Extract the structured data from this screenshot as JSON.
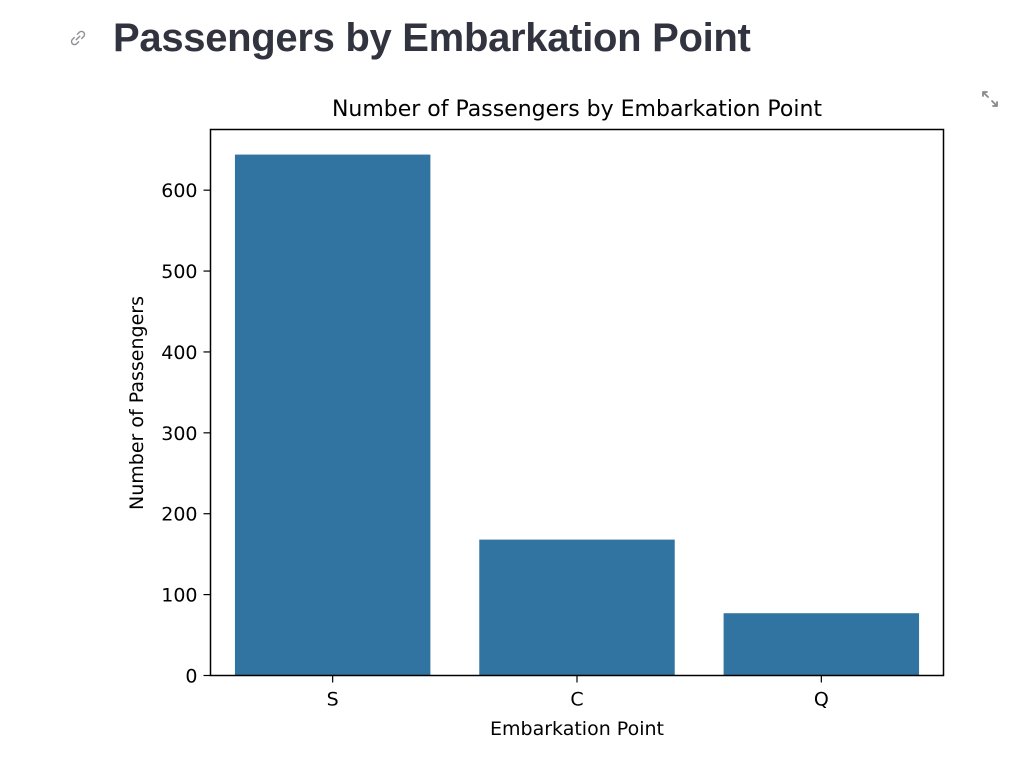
{
  "header": {
    "title": "Passengers by Embarkation Point",
    "link_icon": "link-icon",
    "expand_icon": "fullscreen-expand-icon"
  },
  "chart_data": {
    "type": "bar",
    "title": "Number of Passengers by Embarkation Point",
    "xlabel": "Embarkation Point",
    "ylabel": "Number of Passengers",
    "categories": [
      "S",
      "C",
      "Q"
    ],
    "values": [
      644,
      168,
      77
    ],
    "ylim": [
      0,
      675
    ],
    "yticks": [
      0,
      100,
      200,
      300,
      400,
      500,
      600
    ],
    "bar_color": "#3274a1",
    "grid": false,
    "legend": "none"
  }
}
